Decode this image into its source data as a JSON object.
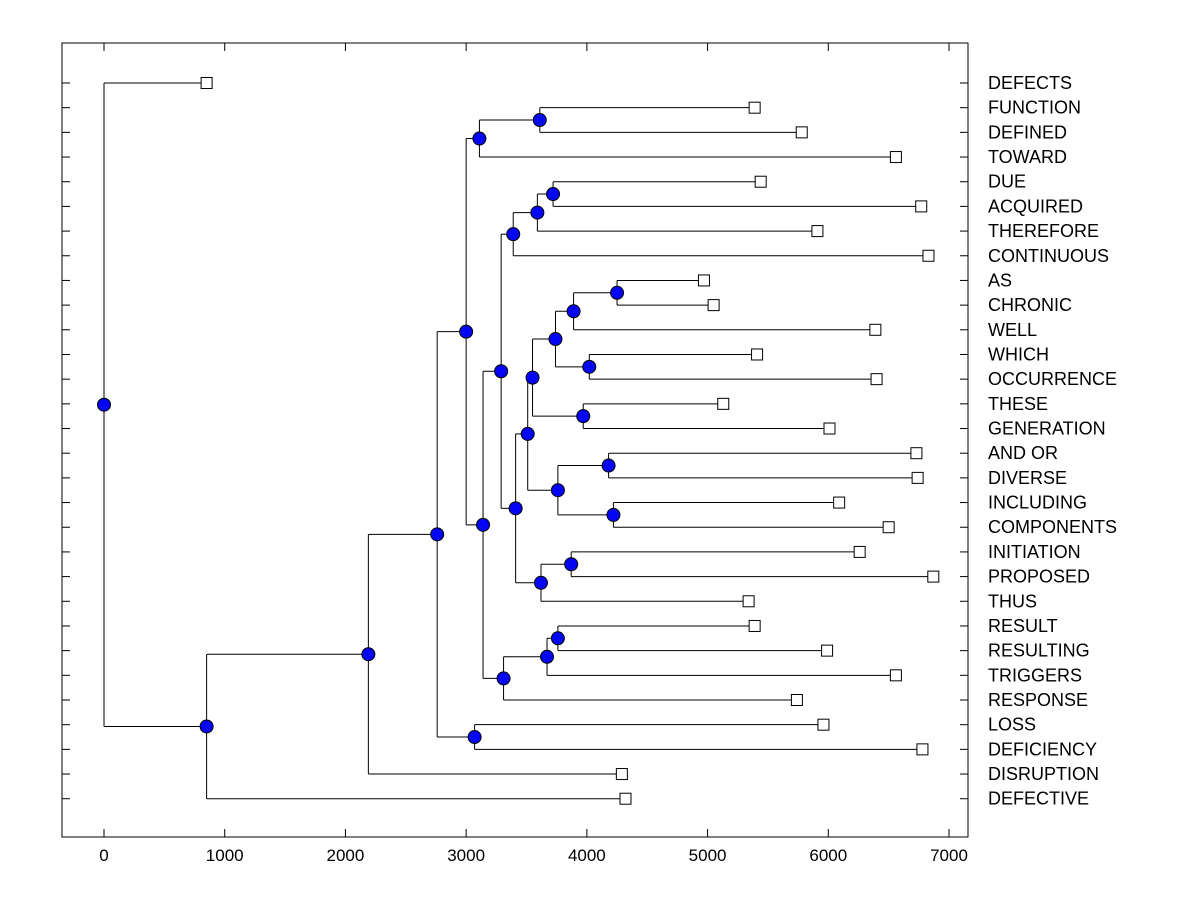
{
  "figure": {
    "background": "#ffffff",
    "line_color": "#000000",
    "border_color": "#000000",
    "internal_marker": {
      "shape": "circle",
      "fill": "#0505f5",
      "stroke": "#000000",
      "diameter": 13
    },
    "leaf_marker": {
      "shape": "square",
      "fill": "#ffffff",
      "stroke": "#000000",
      "size": 11
    }
  },
  "chart_data": {
    "type": "dendrogram",
    "orientation": "left-to-right",
    "title": "",
    "xlabel": "",
    "ylabel": "",
    "grid": false,
    "legend": false,
    "x_axis": {
      "min": 0,
      "max": 7000,
      "tick_step": 1000,
      "ticks": [
        0,
        1000,
        2000,
        3000,
        4000,
        5000,
        6000,
        7000
      ],
      "tick_labels": [
        "0",
        "1000",
        "2000",
        "3000",
        "4000",
        "5000",
        "6000",
        "7000"
      ],
      "xlim": [
        -350,
        7160
      ]
    },
    "leaves": [
      {
        "label": "DEFECTS",
        "x": 850
      },
      {
        "label": "FUNCTION",
        "x": 5390
      },
      {
        "label": "DEFINED",
        "x": 5780
      },
      {
        "label": "TOWARD",
        "x": 6560
      },
      {
        "label": "DUE",
        "x": 5440
      },
      {
        "label": "ACQUIRED",
        "x": 6770
      },
      {
        "label": "THEREFORE",
        "x": 5910
      },
      {
        "label": "CONTINUOUS",
        "x": 6830
      },
      {
        "label": "AS",
        "x": 4970
      },
      {
        "label": "CHRONIC",
        "x": 5050
      },
      {
        "label": "WELL",
        "x": 6390
      },
      {
        "label": "WHICH",
        "x": 5410
      },
      {
        "label": "OCCURRENCE",
        "x": 6400
      },
      {
        "label": "THESE",
        "x": 5130
      },
      {
        "label": "GENERATION",
        "x": 6010
      },
      {
        "label": "AND OR",
        "x": 6730
      },
      {
        "label": "DIVERSE",
        "x": 6740
      },
      {
        "label": "INCLUDING",
        "x": 6090
      },
      {
        "label": "COMPONENTS",
        "x": 6500
      },
      {
        "label": "INITIATION",
        "x": 6260
      },
      {
        "label": "PROPOSED",
        "x": 6870
      },
      {
        "label": "THUS",
        "x": 5340
      },
      {
        "label": "RESULT",
        "x": 5390
      },
      {
        "label": "RESULTING",
        "x": 5990
      },
      {
        "label": "TRIGGERS",
        "x": 6560
      },
      {
        "label": "RESPONSE",
        "x": 5740
      },
      {
        "label": "LOSS",
        "x": 5960
      },
      {
        "label": "DEFICIENCY",
        "x": 6780
      },
      {
        "label": "DISRUPTION",
        "x": 4290
      },
      {
        "label": "DEFECTIVE",
        "x": 4320
      }
    ],
    "internal_nodes": [
      {
        "id": "nA",
        "x": 3610,
        "children": [
          "FUNCTION",
          "DEFINED"
        ]
      },
      {
        "id": "nB",
        "x": 3110,
        "children": [
          "nA",
          "TOWARD"
        ]
      },
      {
        "id": "nC",
        "x": 3720,
        "children": [
          "DUE",
          "ACQUIRED"
        ]
      },
      {
        "id": "nD",
        "x": 3590,
        "children": [
          "nC",
          "THEREFORE"
        ]
      },
      {
        "id": "nE",
        "x": 3390,
        "children": [
          "nD",
          "CONTINUOUS"
        ]
      },
      {
        "id": "nF",
        "x": 4250,
        "children": [
          "AS",
          "CHRONIC"
        ]
      },
      {
        "id": "nG",
        "x": 3890,
        "children": [
          "nF",
          "WELL"
        ]
      },
      {
        "id": "nI",
        "x": 4020,
        "children": [
          "WHICH",
          "OCCURRENCE"
        ]
      },
      {
        "id": "nH",
        "x": 3740,
        "children": [
          "nG",
          "nI"
        ]
      },
      {
        "id": "nK",
        "x": 3970,
        "children": [
          "THESE",
          "GENERATION"
        ]
      },
      {
        "id": "nJ",
        "x": 3550,
        "children": [
          "nH",
          "nK"
        ]
      },
      {
        "id": "nM",
        "x": 4180,
        "children": [
          "AND OR",
          "DIVERSE"
        ]
      },
      {
        "id": "nO",
        "x": 4220,
        "children": [
          "INCLUDING",
          "COMPONENTS"
        ]
      },
      {
        "id": "nN",
        "x": 3760,
        "children": [
          "nM",
          "nO"
        ]
      },
      {
        "id": "nL",
        "x": 3510,
        "children": [
          "nJ",
          "nN"
        ]
      },
      {
        "id": "nT",
        "x": 3870,
        "children": [
          "INITIATION",
          "PROPOSED"
        ]
      },
      {
        "id": "nU",
        "x": 3620,
        "children": [
          "nT",
          "THUS"
        ]
      },
      {
        "id": "nP",
        "x": 3410,
        "children": [
          "nL",
          "nU"
        ]
      },
      {
        "id": "nS2",
        "x": 3290,
        "children": [
          "nE",
          "nP"
        ]
      },
      {
        "id": "nV",
        "x": 3760,
        "children": [
          "RESULT",
          "RESULTING"
        ]
      },
      {
        "id": "nW",
        "x": 3670,
        "children": [
          "nV",
          "TRIGGERS"
        ]
      },
      {
        "id": "nX",
        "x": 3310,
        "children": [
          "nW",
          "RESPONSE"
        ]
      },
      {
        "id": "nQ",
        "x": 3140,
        "children": [
          "nS2",
          "nX"
        ]
      },
      {
        "id": "nS1",
        "x": 3000,
        "children": [
          "nB",
          "nQ"
        ]
      },
      {
        "id": "nY",
        "x": 3070,
        "children": [
          "LOSS",
          "DEFICIENCY"
        ]
      },
      {
        "id": "nR",
        "x": 2760,
        "children": [
          "nS1",
          "nY"
        ]
      },
      {
        "id": "nZ1",
        "x": 2190,
        "children": [
          "nR",
          "DISRUPTION"
        ]
      },
      {
        "id": "nZ2",
        "x": 850,
        "children": [
          "nZ1",
          "DEFECTIVE"
        ]
      },
      {
        "id": "root",
        "x": 0,
        "children": [
          "DEFECTS",
          "nZ2"
        ]
      }
    ]
  }
}
